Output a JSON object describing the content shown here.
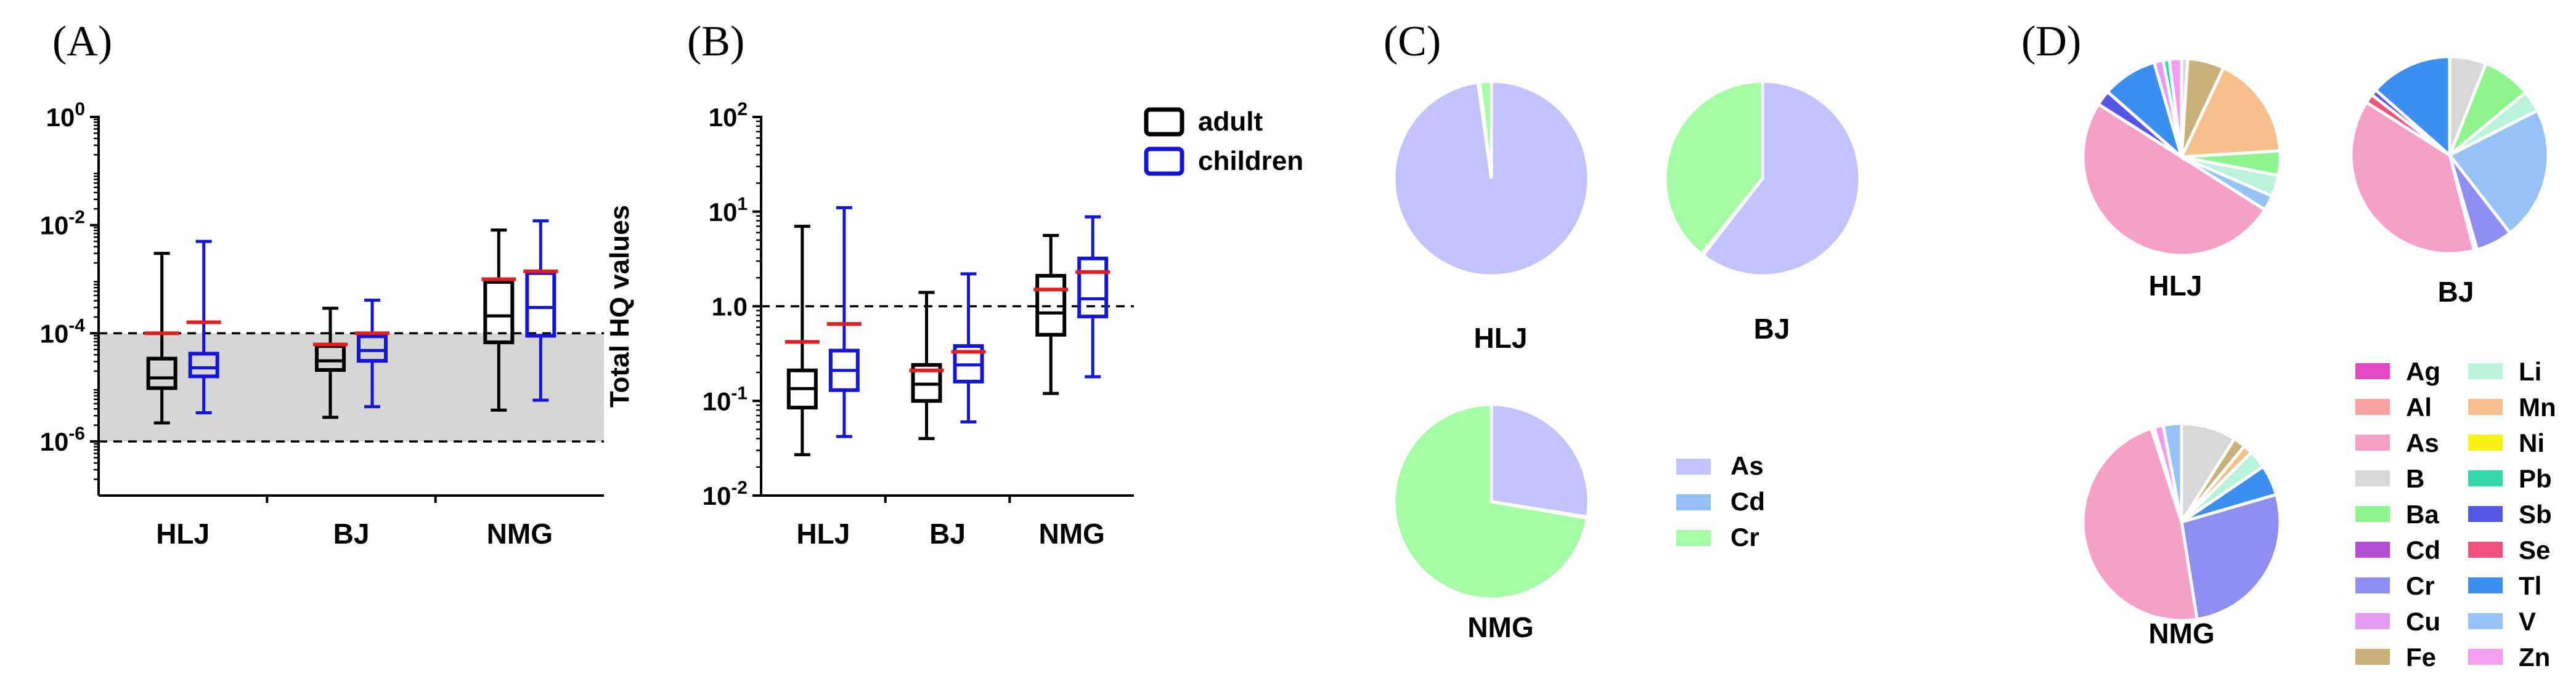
{
  "panels": {
    "A": "(A)",
    "B": "(B)",
    "C": "(C)",
    "D": "(D)"
  },
  "chart_data": [
    {
      "id": "A",
      "type": "boxplot",
      "yscale": "log",
      "ylim": [
        1e-07,
        1
      ],
      "yticks": [
        {
          "value": 1,
          "base": "10",
          "exp": "0"
        },
        {
          "value": 0.01,
          "base": "10",
          "exp": "-2"
        },
        {
          "value": 0.0001,
          "base": "10",
          "exp": "-4"
        },
        {
          "value": 1e-06,
          "base": "10",
          "exp": "-6"
        }
      ],
      "shaded_range": [
        1e-06,
        0.0001
      ],
      "reference_lines": [
        0.0001,
        1e-06
      ],
      "categories": [
        "HLJ",
        "BJ",
        "NMG"
      ],
      "series": [
        {
          "name": "adult",
          "color": "#000000",
          "boxes": [
            {
              "min": 2.2e-06,
              "q1": 9.7e-06,
              "median": 1.5e-05,
              "q3": 3.4e-05,
              "max": 0.003,
              "mean": 0.0001
            },
            {
              "min": 2.8e-06,
              "q1": 2.1e-05,
              "median": 3.1e-05,
              "q3": 5.8e-05,
              "max": 0.00029,
              "mean": 6.2e-05
            },
            {
              "min": 3.8e-06,
              "q1": 6.8e-05,
              "median": 0.00021,
              "q3": 0.00089,
              "max": 0.0081,
              "mean": 0.001
            }
          ]
        },
        {
          "name": "children",
          "color": "#1515d8",
          "boxes": [
            {
              "min": 3.4e-06,
              "q1": 1.6e-05,
              "median": 2.3e-05,
              "q3": 4.2e-05,
              "max": 0.005,
              "mean": 0.00016
            },
            {
              "min": 4.4e-06,
              "q1": 3.1e-05,
              "median": 4.8e-05,
              "q3": 8.8e-05,
              "max": 0.00041,
              "mean": 0.0001
            },
            {
              "min": 5.8e-06,
              "q1": 9e-05,
              "median": 0.0003,
              "q3": 0.0013,
              "max": 0.012,
              "mean": 0.0014
            }
          ]
        }
      ]
    },
    {
      "id": "B",
      "type": "boxplot",
      "yscale": "log",
      "ylim": [
        0.01,
        100
      ],
      "ylabel": "Total HQ values",
      "yticks": [
        {
          "value": 100,
          "base": "10",
          "exp": "2"
        },
        {
          "value": 10,
          "base": "10",
          "exp": "1"
        },
        {
          "value": 1,
          "base": "1.0",
          "exp": ""
        },
        {
          "value": 0.1,
          "base": "10",
          "exp": "-1"
        },
        {
          "value": 0.01,
          "base": "10",
          "exp": "-2"
        }
      ],
      "reference_lines": [
        1
      ],
      "categories": [
        "HLJ",
        "BJ",
        "NMG"
      ],
      "legend": [
        {
          "label": "adult",
          "color": "#000000"
        },
        {
          "label": "children",
          "color": "#1515d8"
        }
      ],
      "series": [
        {
          "name": "adult",
          "color": "#000000",
          "boxes": [
            {
              "min": 0.027,
              "q1": 0.085,
              "median": 0.135,
              "q3": 0.21,
              "max": 7.0,
              "mean": 0.42
            },
            {
              "min": 0.04,
              "q1": 0.1,
              "median": 0.15,
              "q3": 0.24,
              "max": 1.4,
              "mean": 0.21
            },
            {
              "min": 0.12,
              "q1": 0.5,
              "median": 0.85,
              "q3": 2.1,
              "max": 5.6,
              "mean": 1.5
            }
          ]
        },
        {
          "name": "children",
          "color": "#1515d8",
          "boxes": [
            {
              "min": 0.042,
              "q1": 0.13,
              "median": 0.21,
              "q3": 0.34,
              "max": 11.0,
              "mean": 0.65
            },
            {
              "min": 0.06,
              "q1": 0.16,
              "median": 0.24,
              "q3": 0.38,
              "max": 2.2,
              "mean": 0.33
            },
            {
              "min": 0.18,
              "q1": 0.78,
              "median": 1.2,
              "q3": 3.2,
              "max": 8.8,
              "mean": 2.3
            }
          ]
        }
      ]
    },
    {
      "id": "C",
      "type": "pie",
      "legend": [
        {
          "label": "As",
          "color": "#c3c3fb"
        },
        {
          "label": "Cd",
          "color": "#93c1f7"
        },
        {
          "label": "Cr",
          "color": "#a6fba6"
        }
      ],
      "pies": [
        {
          "label": "HLJ",
          "slices": [
            {
              "name": "As",
              "value": 97.8
            },
            {
              "name": "Cd",
              "value": 0.3
            },
            {
              "name": "Cr",
              "value": 1.9
            }
          ]
        },
        {
          "label": "BJ",
          "slices": [
            {
              "name": "As",
              "value": 60.5
            },
            {
              "name": "Cd",
              "value": 0.3
            },
            {
              "name": "Cr",
              "value": 39.2
            }
          ]
        },
        {
          "label": "NMG",
          "slices": [
            {
              "name": "As",
              "value": 27.5
            },
            {
              "name": "Cd",
              "value": 0.2
            },
            {
              "name": "Cr",
              "value": 72.3
            }
          ]
        }
      ]
    },
    {
      "id": "D",
      "type": "pie",
      "legend": [
        {
          "label": "Ag",
          "color": "#e646c8"
        },
        {
          "label": "Al",
          "color": "#f7a1a1"
        },
        {
          "label": "As",
          "color": "#f59fc9"
        },
        {
          "label": "B",
          "color": "#d7d7d7"
        },
        {
          "label": "Ba",
          "color": "#8ef58e"
        },
        {
          "label": "Cd",
          "color": "#b44fd4"
        },
        {
          "label": "Cr",
          "color": "#8f8ff2"
        },
        {
          "label": "Cu",
          "color": "#e59cf5"
        },
        {
          "label": "Fe",
          "color": "#c8b17a"
        },
        {
          "label": "Li",
          "color": "#b9f3dc"
        },
        {
          "label": "Mn",
          "color": "#f6c08d"
        },
        {
          "label": "Ni",
          "color": "#f7f21a"
        },
        {
          "label": "Pb",
          "color": "#35d6a8"
        },
        {
          "label": "Sb",
          "color": "#5656e6"
        },
        {
          "label": "Se",
          "color": "#f0517c"
        },
        {
          "label": "Tl",
          "color": "#3c8ff0"
        },
        {
          "label": "V",
          "color": "#96c2f7"
        },
        {
          "label": "Zn",
          "color": "#f39bec"
        }
      ],
      "pies": [
        {
          "label": "HLJ",
          "slices": [
            {
              "name": "B",
              "value": 1.0
            },
            {
              "name": "Fe",
              "value": 6.0
            },
            {
              "name": "Mn",
              "value": 17.0
            },
            {
              "name": "Ba",
              "value": 4.0
            },
            {
              "name": "Li",
              "value": 3.5
            },
            {
              "name": "V",
              "value": 2.5
            },
            {
              "name": "As",
              "value": 50.0
            },
            {
              "name": "Sb",
              "value": 2.5
            },
            {
              "name": "Tl",
              "value": 9.0
            },
            {
              "name": "Cu",
              "value": 1.5
            },
            {
              "name": "Pb",
              "value": 1.0
            },
            {
              "name": "Zn",
              "value": 2.0
            }
          ]
        },
        {
          "label": "BJ",
          "slices": [
            {
              "name": "B",
              "value": 6.0
            },
            {
              "name": "Ba",
              "value": 8.0
            },
            {
              "name": "Li",
              "value": 3.5
            },
            {
              "name": "V",
              "value": 22.0
            },
            {
              "name": "Cr",
              "value": 6.0
            },
            {
              "name": "Zn",
              "value": 0.5
            },
            {
              "name": "As",
              "value": 38.0
            },
            {
              "name": "Se",
              "value": 1.5
            },
            {
              "name": "Sb",
              "value": 1.0
            },
            {
              "name": "Tl",
              "value": 13.5
            }
          ]
        },
        {
          "label": "NMG",
          "slices": [
            {
              "name": "B",
              "value": 9.0
            },
            {
              "name": "Fe",
              "value": 2.0
            },
            {
              "name": "Mn",
              "value": 1.5
            },
            {
              "name": "Li",
              "value": 3.0
            },
            {
              "name": "Tl",
              "value": 5.0
            },
            {
              "name": "Cr",
              "value": 27.0
            },
            {
              "name": "As",
              "value": 47.5
            },
            {
              "name": "Al",
              "value": 0.5
            },
            {
              "name": "Zn",
              "value": 1.5
            },
            {
              "name": "V",
              "value": 3.0
            }
          ]
        }
      ]
    }
  ]
}
